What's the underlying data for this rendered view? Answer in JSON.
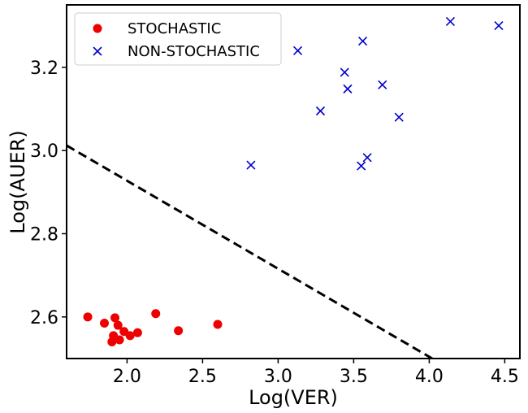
{
  "chart_data": {
    "type": "scatter",
    "xlabel": "Log(VER)",
    "ylabel": "Log(AUER)",
    "xlim": [
      1.6,
      4.6
    ],
    "ylim": [
      2.5,
      3.35
    ],
    "xticks": [
      "2.0",
      "2.5",
      "3.0",
      "3.5",
      "4.0",
      "4.5"
    ],
    "yticks": [
      "2.6",
      "2.8",
      "3.0",
      "3.2"
    ],
    "grid": false,
    "legend_position": "top-left",
    "series": [
      {
        "name": "STOCHASTIC",
        "marker": "circle",
        "color": "#ee0000",
        "points": [
          [
            1.74,
            2.6
          ],
          [
            1.85,
            2.585
          ],
          [
            1.9,
            2.54
          ],
          [
            1.91,
            2.555
          ],
          [
            1.92,
            2.598
          ],
          [
            1.94,
            2.58
          ],
          [
            1.95,
            2.545
          ],
          [
            1.98,
            2.565
          ],
          [
            2.02,
            2.555
          ],
          [
            2.07,
            2.562
          ],
          [
            2.19,
            2.608
          ],
          [
            2.34,
            2.567
          ],
          [
            2.6,
            2.582
          ]
        ]
      },
      {
        "name": "NON-STOCHASTIC",
        "marker": "x",
        "color": "#0000cc",
        "points": [
          [
            2.82,
            2.965
          ],
          [
            3.13,
            3.24
          ],
          [
            3.28,
            3.095
          ],
          [
            3.44,
            3.188
          ],
          [
            3.46,
            3.148
          ],
          [
            3.55,
            2.963
          ],
          [
            3.56,
            3.263
          ],
          [
            3.59,
            2.983
          ],
          [
            3.69,
            3.158
          ],
          [
            3.8,
            3.08
          ],
          [
            4.14,
            3.31
          ],
          [
            4.46,
            3.3
          ]
        ]
      }
    ],
    "boundary": {
      "style": "dashed",
      "color": "#000000",
      "points": [
        [
          1.6,
          3.012
        ],
        [
          4.02,
          2.5
        ]
      ]
    }
  }
}
